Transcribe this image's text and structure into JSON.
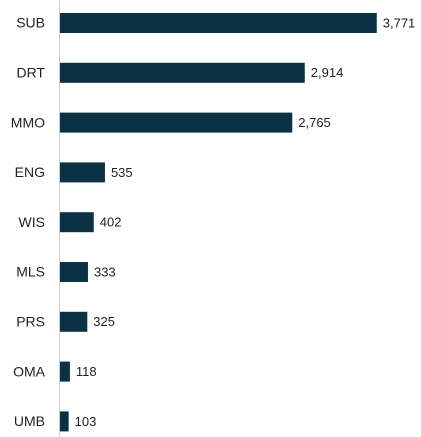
{
  "chart_data": {
    "type": "bar",
    "orientation": "horizontal",
    "categories": [
      "SUB",
      "DRT",
      "MMO",
      "ENG",
      "WIS",
      "MLS",
      "PRS",
      "OMA",
      "UMB"
    ],
    "values": [
      3771,
      2914,
      2765,
      535,
      402,
      333,
      325,
      118,
      103
    ],
    "value_labels": [
      "3,771",
      "2,914",
      "2,765",
      "535",
      "402",
      "333",
      "325",
      "118",
      "103"
    ],
    "color": "#0b3145",
    "xlim": [
      0,
      4000
    ]
  }
}
